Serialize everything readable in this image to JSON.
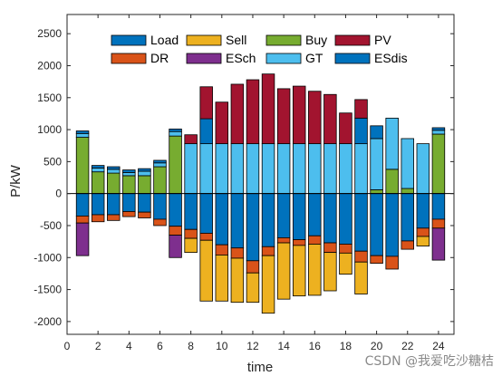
{
  "chart_data": {
    "type": "bar",
    "stacked": true,
    "xlabel": "time",
    "ylabel": "P/kW",
    "xlim": [
      0,
      25
    ],
    "ylim": [
      -2200,
      2800
    ],
    "xticks": [
      0,
      2,
      4,
      6,
      8,
      10,
      12,
      14,
      16,
      18,
      20,
      22,
      24
    ],
    "yticks": [
      -2000,
      -1500,
      -1000,
      -500,
      0,
      500,
      1000,
      1500,
      2000,
      2500
    ],
    "x": [
      1,
      2,
      3,
      4,
      5,
      6,
      7,
      8,
      9,
      10,
      11,
      12,
      13,
      14,
      15,
      16,
      17,
      18,
      19,
      20,
      21,
      22,
      23,
      24
    ],
    "grid": false,
    "legend_position": "top",
    "positive_series": [
      {
        "name": "Buy",
        "color": "#77AC30",
        "values": [
          880,
          340,
          320,
          280,
          280,
          420,
          900,
          0,
          0,
          0,
          0,
          0,
          0,
          0,
          0,
          0,
          0,
          0,
          0,
          60,
          380,
          80,
          0,
          930
        ]
      },
      {
        "name": "GT",
        "color": "#4DBEEE",
        "values": [
          60,
          60,
          60,
          50,
          70,
          60,
          70,
          780,
          780,
          780,
          780,
          780,
          780,
          780,
          780,
          780,
          780,
          780,
          780,
          800,
          800,
          780,
          780,
          60
        ]
      },
      {
        "name": "ESdis",
        "color": "#0072BD",
        "values": [
          40,
          40,
          40,
          40,
          40,
          40,
          40,
          0,
          390,
          0,
          0,
          0,
          0,
          0,
          0,
          0,
          0,
          0,
          400,
          200,
          0,
          0,
          0,
          40
        ]
      },
      {
        "name": "PV",
        "color": "#A2142F",
        "values": [
          0,
          0,
          0,
          0,
          0,
          0,
          0,
          140,
          500,
          650,
          930,
          1000,
          1090,
          860,
          900,
          820,
          770,
          480,
          290,
          0,
          0,
          0,
          0,
          0
        ]
      }
    ],
    "negative_series": [
      {
        "name": "Load",
        "color": "#0072BD",
        "values": [
          -350,
          -330,
          -330,
          -280,
          -290,
          -400,
          -510,
          -560,
          -620,
          -800,
          -850,
          -1050,
          -830,
          -690,
          -720,
          -660,
          -770,
          -790,
          -900,
          -970,
          -980,
          -740,
          -540,
          -400
        ]
      },
      {
        "name": "DR",
        "color": "#D95319",
        "values": [
          -110,
          -110,
          -90,
          -80,
          -90,
          -100,
          -140,
          -140,
          -110,
          -160,
          -160,
          -190,
          -140,
          -80,
          -90,
          -130,
          -150,
          -140,
          -170,
          -120,
          -200,
          -130,
          -130,
          -140
        ]
      },
      {
        "name": "Sell",
        "color": "#EDB120",
        "values": [
          0,
          0,
          0,
          0,
          0,
          0,
          0,
          -220,
          -950,
          -720,
          -690,
          -460,
          -900,
          -880,
          -790,
          -800,
          -600,
          -330,
          -500,
          0,
          0,
          0,
          -150,
          0
        ]
      },
      {
        "name": "ESch",
        "color": "#7E2F8E",
        "values": [
          -510,
          0,
          0,
          0,
          0,
          0,
          -350,
          0,
          0,
          0,
          0,
          0,
          0,
          0,
          0,
          0,
          0,
          0,
          0,
          0,
          0,
          0,
          0,
          -500
        ]
      }
    ],
    "legend": [
      {
        "name": "Load",
        "color": "#0072BD"
      },
      {
        "name": "Sell",
        "color": "#EDB120"
      },
      {
        "name": "Buy",
        "color": "#77AC30"
      },
      {
        "name": "PV",
        "color": "#A2142F"
      },
      {
        "name": "DR",
        "color": "#D95319"
      },
      {
        "name": "ESch",
        "color": "#7E2F8E"
      },
      {
        "name": "GT",
        "color": "#4DBEEE"
      },
      {
        "name": "ESdis",
        "color": "#0072BD"
      }
    ]
  },
  "watermark": "CSDN @我爱吃沙糖桔"
}
